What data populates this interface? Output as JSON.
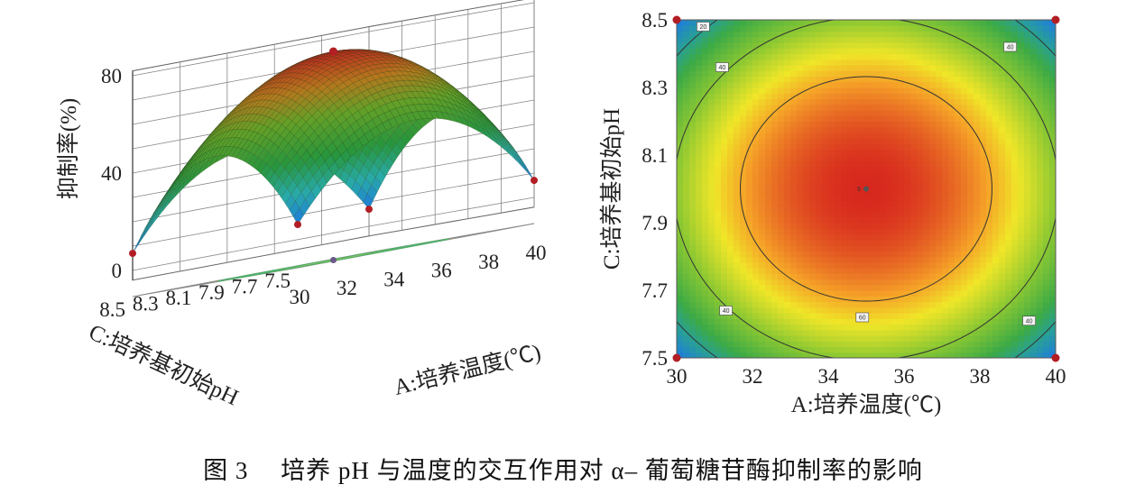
{
  "chart_data": [
    {
      "type": "surface3d",
      "model": {
        "form": "quadratic",
        "center": {
          "temperature": 35,
          "pH": 8.0
        },
        "peak": 75,
        "corner_value": 7
      },
      "z_label": "抑制率(%)",
      "z_ticks": [
        "0",
        "40",
        "80"
      ],
      "z_range": [
        0,
        80
      ],
      "x_label": "A:培养温度(℃)",
      "x_ticks": [
        "30",
        "32",
        "34",
        "36",
        "38",
        "40"
      ],
      "x_range": [
        30,
        40
      ],
      "y_label": "C:培养基初始pH",
      "y_ticks": [
        "7.5",
        "7.7",
        "7.9",
        "8.1",
        "8.3",
        "8.5"
      ],
      "y_range": [
        7.5,
        8.5
      ],
      "design_points": [
        {
          "temperature": 30,
          "pH": 7.5,
          "value": 7
        },
        {
          "temperature": 40,
          "pH": 8.5,
          "value": 7
        },
        {
          "temperature": 30,
          "pH": 8.5,
          "value": 7
        },
        {
          "temperature": 40,
          "pH": 7.5,
          "value": 7
        },
        {
          "temperature": 35,
          "pH": 8.0,
          "value": 75
        }
      ]
    },
    {
      "type": "contour",
      "x_label": "A:培养温度(℃)",
      "x_ticks": [
        "30",
        "32",
        "34",
        "36",
        "38",
        "40"
      ],
      "x_range": [
        30,
        40
      ],
      "y_label": "C:培养基初始pH",
      "y_ticks": [
        "7.5",
        "7.7",
        "7.9",
        "8.1",
        "8.3",
        "8.5"
      ],
      "y_range": [
        7.5,
        8.5
      ],
      "levels": [
        20,
        40,
        60
      ],
      "contour_labels": [
        "20",
        "40",
        "40",
        "40",
        "40",
        "60"
      ],
      "center_label": "5",
      "design_points": [
        {
          "temperature": 30,
          "pH": 8.5
        },
        {
          "temperature": 40,
          "pH": 8.5
        },
        {
          "temperature": 30,
          "pH": 7.5
        },
        {
          "temperature": 40,
          "pH": 7.5
        },
        {
          "temperature": 35,
          "pH": 8.0
        }
      ]
    }
  ],
  "caption": "图 3　 培养 pH 与温度的交互作用对 α– 葡萄糖苷酶抑制率的影响",
  "colors": {
    "high": "#d42a1c",
    "mid": "#f1e62a",
    "low_green": "#34a24a",
    "low_blue": "#1b6fd0",
    "floor": "#e2e43a",
    "marker": "#b21e24"
  }
}
